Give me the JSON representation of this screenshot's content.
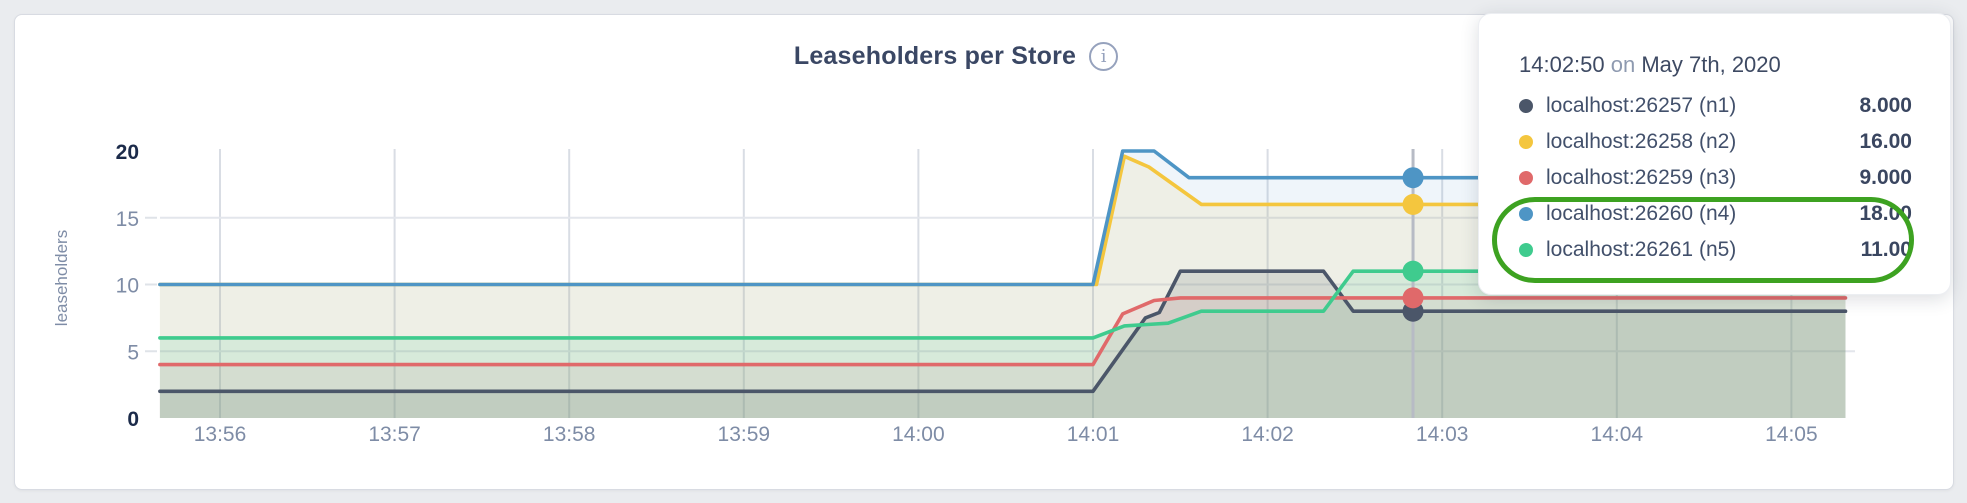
{
  "header": {
    "title": "Leaseholders per Store",
    "info_icon_glyph": "i"
  },
  "y_axis": {
    "label": "leaseholders"
  },
  "tooltip": {
    "time": "14:02:50",
    "conj": " on ",
    "date": "May 7th, 2020",
    "rows": [
      {
        "label": "localhost:26257 (n1)",
        "value": "8.000",
        "color": "#4b5669"
      },
      {
        "label": "localhost:26258 (n2)",
        "value": "16.00",
        "color": "#f4c63e"
      },
      {
        "label": "localhost:26259 (n3)",
        "value": "9.000",
        "color": "#e0696a"
      },
      {
        "label": "localhost:26260 (n4)",
        "value": "18.00",
        "color": "#4e95c5"
      },
      {
        "label": "localhost:26261 (n5)",
        "value": "11.00",
        "color": "#3fcb8e"
      }
    ]
  },
  "annotation": {
    "shape": "green-ellipse",
    "color": "#3da221",
    "highlights": [
      "localhost:26260 (n4)",
      "localhost:26261 (n5)"
    ]
  },
  "chart_data": {
    "type": "area",
    "title": "Leaseholders per Store",
    "xlabel": "",
    "ylabel": "leaseholders",
    "ylim": [
      0,
      20
    ],
    "grid": true,
    "x_ticks": [
      "13:56",
      "13:57",
      "13:58",
      "13:59",
      "14:00",
      "14:01",
      "14:02",
      "14:03",
      "14:04",
      "14:05"
    ],
    "y_ticks": [
      {
        "label": "20",
        "v": 20,
        "bold": true
      },
      {
        "label": "15",
        "v": 15,
        "bold": false
      },
      {
        "label": "10",
        "v": 10,
        "bold": false
      },
      {
        "label": "5",
        "v": 5,
        "bold": false
      },
      {
        "label": "0",
        "v": 0,
        "bold": true
      }
    ],
    "y_grid_values": [
      5,
      10,
      15
    ],
    "x_domain_minutes": [
      -0.344,
      9.31
    ],
    "hover": {
      "time": "14:02:50",
      "t": 6.833
    },
    "series": [
      {
        "name": "localhost:26257 (n1)",
        "color": "#4b5669",
        "fill_opacity": 0.16,
        "hover_value": 8,
        "points": [
          [
            -0.344,
            2
          ],
          [
            5.0,
            2
          ],
          [
            5.3,
            7.5
          ],
          [
            5.38,
            7.9
          ],
          [
            5.5,
            11
          ],
          [
            6.32,
            11
          ],
          [
            6.49,
            8
          ],
          [
            9.31,
            8
          ]
        ]
      },
      {
        "name": "localhost:26258 (n2)",
        "color": "#f4c63e",
        "fill_opacity": 0.11,
        "hover_value": 16,
        "points": [
          [
            -0.344,
            10
          ],
          [
            5.02,
            10
          ],
          [
            5.18,
            19.6
          ],
          [
            5.32,
            18.8
          ],
          [
            5.62,
            16
          ],
          [
            9.31,
            16
          ]
        ]
      },
      {
        "name": "localhost:26259 (n3)",
        "color": "#e0696a",
        "fill_opacity": 0.1,
        "hover_value": 9,
        "points": [
          [
            -0.344,
            4
          ],
          [
            5.0,
            4
          ],
          [
            5.17,
            7.8
          ],
          [
            5.35,
            8.8
          ],
          [
            5.5,
            9
          ],
          [
            9.31,
            9
          ]
        ]
      },
      {
        "name": "localhost:26260 (n4)",
        "color": "#4e95c5",
        "fill_opacity": 0.09,
        "hover_value": 18,
        "points": [
          [
            -0.344,
            10
          ],
          [
            5.0,
            10
          ],
          [
            5.17,
            20
          ],
          [
            5.35,
            20
          ],
          [
            5.55,
            18
          ],
          [
            9.31,
            18
          ]
        ]
      },
      {
        "name": "localhost:26261 (n5)",
        "color": "#3fcb8e",
        "fill_opacity": 0.13,
        "hover_value": 11,
        "points": [
          [
            -0.344,
            6
          ],
          [
            5.0,
            6
          ],
          [
            5.18,
            6.9
          ],
          [
            5.43,
            7.1
          ],
          [
            5.62,
            8
          ],
          [
            6.32,
            8
          ],
          [
            6.49,
            11
          ],
          [
            9.31,
            11
          ]
        ]
      }
    ]
  }
}
